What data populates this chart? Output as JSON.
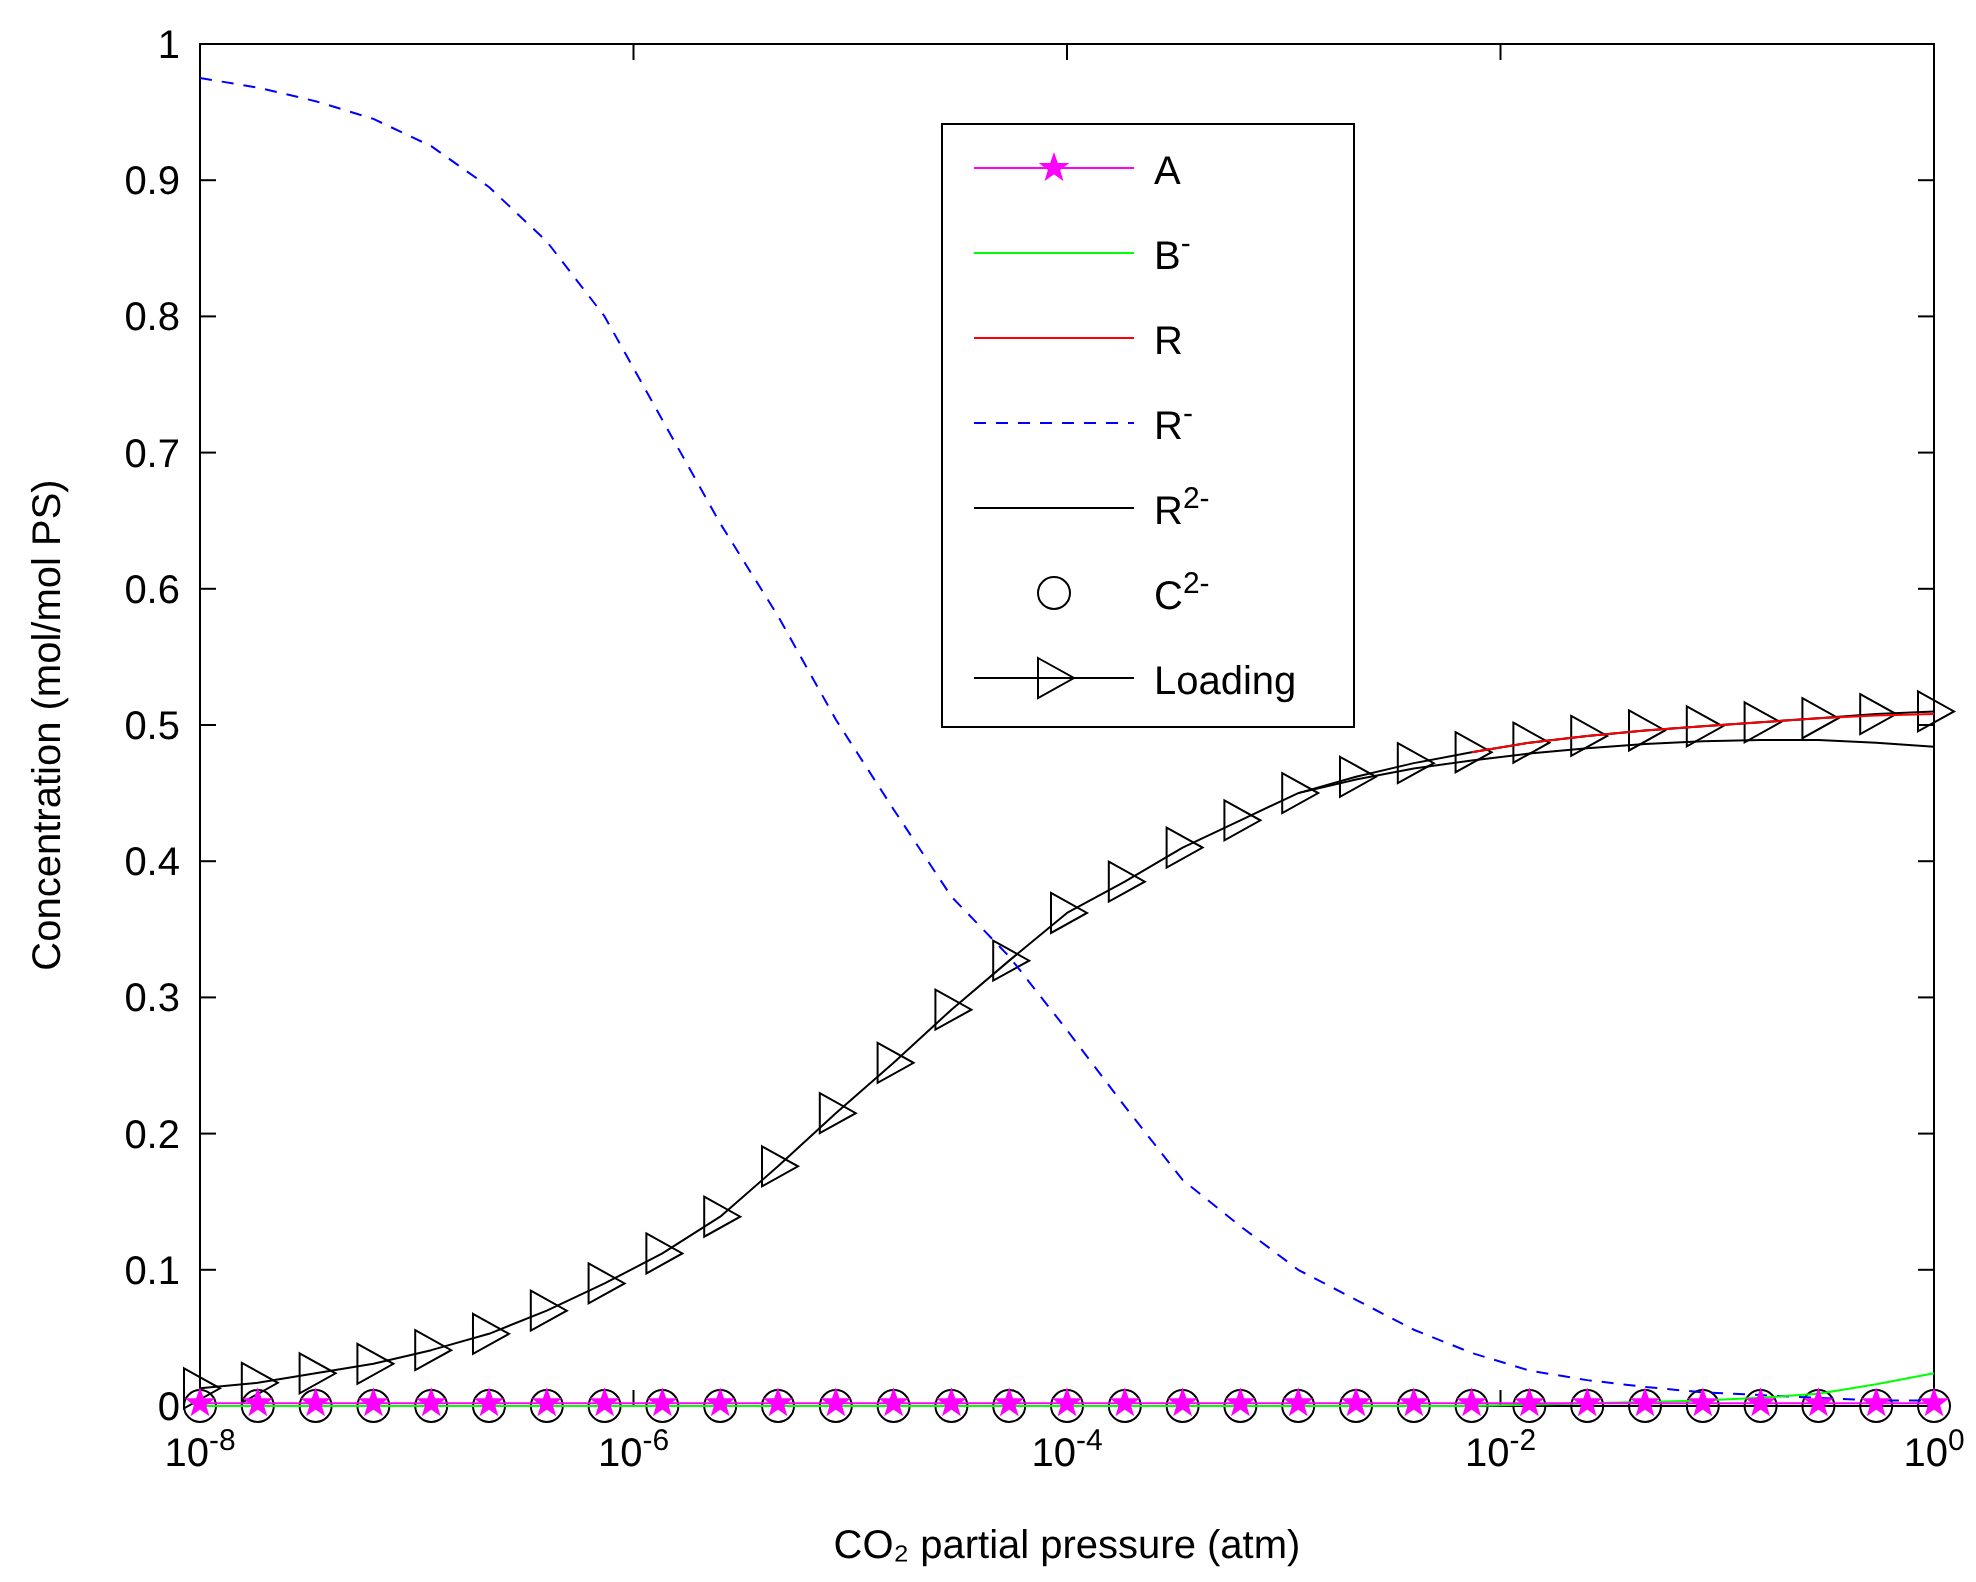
{
  "chart_data": {
    "type": "line",
    "xlabel": "CO₂ partial pressure (atm)",
    "ylabel": "Concentration (mol/mol PS)",
    "log": "x",
    "xlim": [
      1e-08,
      1
    ],
    "ylim": [
      0,
      1
    ],
    "xticks": [
      {
        "value": 1e-08,
        "label": "10$^{-8}$"
      },
      {
        "value": 1e-06,
        "label": "10$^{-6}$"
      },
      {
        "value": 0.0001,
        "label": "10$^{-4}$"
      },
      {
        "value": 0.01,
        "label": "10$^{-2}$"
      },
      {
        "value": 1,
        "label": "10$^{0}$"
      }
    ],
    "yticks": [
      0,
      0.1,
      0.2,
      0.3,
      0.4,
      0.5,
      0.6,
      0.7,
      0.8,
      0.9,
      1
    ],
    "grid": false,
    "legend": "top",
    "line_style": "solid",
    "x": [
      1e-08,
      1.848e-08,
      3.415e-08,
      6.31e-08,
      1.166e-07,
      2.154e-07,
      3.981e-07,
      7.356e-07,
      1.359e-06,
      2.512e-06,
      4.642e-06,
      8.577e-06,
      1.585e-05,
      2.929e-05,
      5.412e-05,
      0.0001,
      0.0001848,
      0.0003415,
      0.000631,
      0.001166,
      0.002154,
      0.003981,
      0.007356,
      0.01359,
      0.02512,
      0.04642,
      0.08577,
      0.1585,
      0.2929,
      0.5412,
      1
    ],
    "series": [
      {
        "name": "A",
        "color": "#ff00ff",
        "marker": "star",
        "values": [
          0.002,
          0.002,
          0.002,
          0.002,
          0.002,
          0.002,
          0.002,
          0.002,
          0.002,
          0.002,
          0.002,
          0.002,
          0.002,
          0.002,
          0.002,
          0.002,
          0.002,
          0.002,
          0.002,
          0.002,
          0.002,
          0.002,
          0.002,
          0.002,
          0.002,
          0.002,
          0.002,
          0.002,
          0.002,
          0.002,
          0.002
        ]
      },
      {
        "name": "B$^{-}$",
        "color": "#00ff00",
        "marker": "none",
        "values": [
          0,
          0,
          0,
          0,
          0,
          0,
          0,
          0,
          0,
          0,
          0,
          0,
          0,
          0,
          0,
          0,
          0,
          0,
          0,
          0,
          0,
          0,
          0,
          0.001,
          0.002,
          0.003,
          0.004,
          0.006,
          0.009,
          0.016,
          0.024
        ]
      },
      {
        "name": "R",
        "color": "#ff0000",
        "marker": "none",
        "values": [
          null,
          null,
          null,
          null,
          null,
          null,
          null,
          null,
          null,
          null,
          null,
          null,
          null,
          null,
          null,
          null,
          null,
          null,
          null,
          null,
          null,
          null,
          0.48,
          0.487,
          0.492,
          0.496,
          0.499,
          0.502,
          0.505,
          0.507,
          0.508
        ]
      },
      {
        "name": "R$^{-}$",
        "color": "#0000ff",
        "marker": "none",
        "line_style": "dashed",
        "values": [
          0.975,
          0.968,
          0.958,
          0.945,
          0.925,
          0.895,
          0.855,
          0.8,
          0.724,
          0.648,
          0.58,
          0.504,
          0.438,
          0.374,
          0.33,
          0.276,
          0.22,
          0.166,
          0.132,
          0.1,
          0.078,
          0.056,
          0.039,
          0.026,
          0.019,
          0.014,
          0.01,
          0.008,
          0.006,
          0.004,
          0.004
        ]
      },
      {
        "name": "R$^{2-}$",
        "color": "#000000",
        "marker": "none",
        "values": [
          null,
          null,
          null,
          null,
          null,
          null,
          null,
          null,
          null,
          null,
          null,
          null,
          null,
          null,
          null,
          null,
          null,
          null,
          null,
          0.45,
          0.46,
          0.468,
          0.474,
          0.479,
          0.483,
          0.486,
          0.488,
          0.489,
          0.489,
          0.487,
          0.484
        ]
      },
      {
        "name": "C$^{2-}$",
        "type": "scatter",
        "color": "#000000",
        "marker": "circle",
        "values": [
          0,
          0,
          0,
          0,
          0,
          0,
          0,
          0,
          0,
          0,
          0,
          0,
          0,
          0,
          0,
          0,
          0,
          0,
          0,
          0,
          0,
          0,
          0,
          0,
          0,
          0,
          0,
          0,
          0,
          0,
          0
        ]
      },
      {
        "name": "Loading",
        "color": "#000000",
        "marker": "triangle",
        "values": [
          0.013,
          0.017,
          0.024,
          0.031,
          0.041,
          0.053,
          0.07,
          0.09,
          0.112,
          0.139,
          0.176,
          0.215,
          0.252,
          0.291,
          0.327,
          0.362,
          0.385,
          0.41,
          0.43,
          0.45,
          0.462,
          0.472,
          0.48,
          0.487,
          0.492,
          0.496,
          0.499,
          0.502,
          0.505,
          0.508,
          0.51
        ]
      }
    ]
  }
}
